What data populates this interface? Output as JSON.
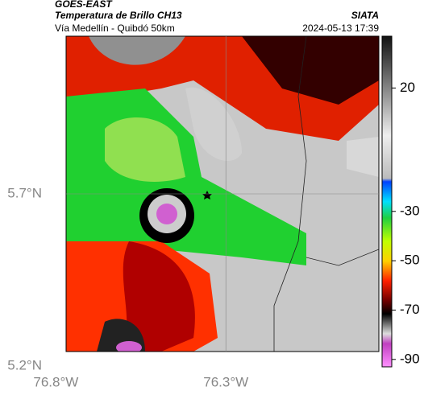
{
  "header": {
    "title": "GOES-EAST",
    "subtitle": "Temperatura de Brillo CH13",
    "route": "Vía Medellín - Quibdó 50km",
    "source": "SIATA",
    "datetime": "2024-05-13 17:39"
  },
  "map": {
    "xlim": [
      -76.77,
      -75.85
    ],
    "ylim": [
      5.242,
      6.158
    ],
    "xticks": [
      {
        "value": -76.8,
        "label": "76.8°W"
      },
      {
        "value": -76.3,
        "label": "76.3°W"
      }
    ],
    "yticks": [
      {
        "value": 5.7,
        "label": "5.7°N"
      },
      {
        "value": 5.2,
        "label": "5.2°N"
      }
    ],
    "grid": true
  },
  "colorbar": {
    "lim": [
      -93,
      41
    ],
    "ticks": [
      20,
      -30,
      -50,
      -70,
      -90
    ]
  }
}
